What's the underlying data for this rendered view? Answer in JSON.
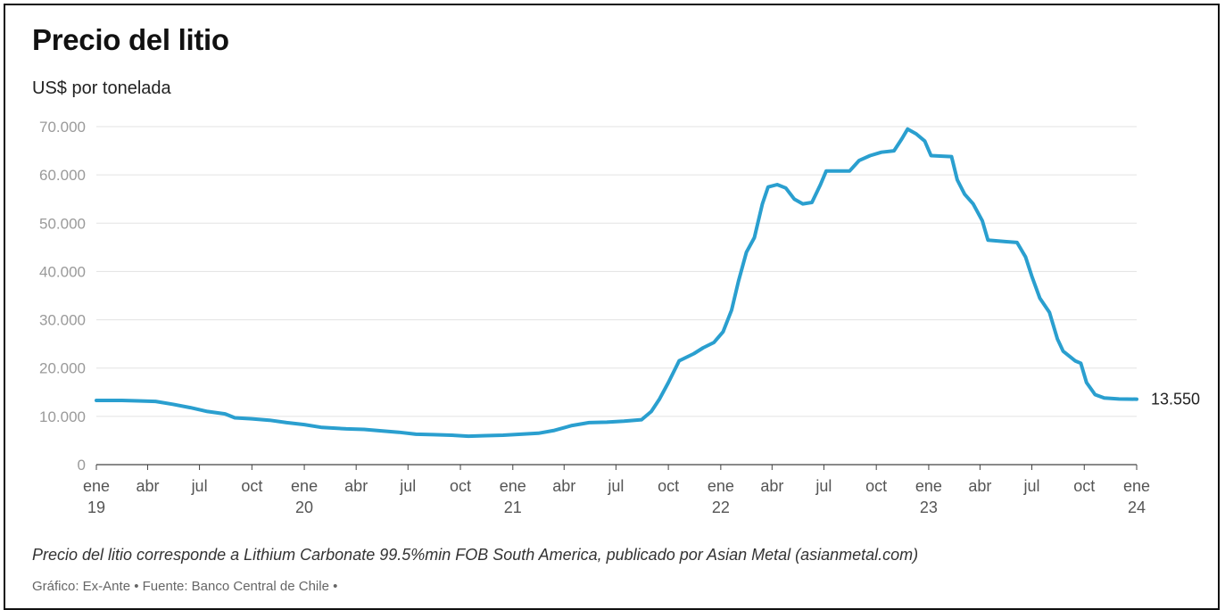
{
  "title": "Precio del litio",
  "subtitle": "US$ por tonelada",
  "note": "Precio del litio corresponde a Lithium Carbonate 99.5%min FOB South America, publicado por Asian Metal (asianmetal.com)",
  "credit": "Gráfico: Ex-Ante • Fuente: Banco Central de Chile •",
  "chart_data": {
    "type": "line",
    "title": "Precio del litio",
    "ylabel": "US$ por tonelada",
    "ylim": [
      0,
      70000
    ],
    "yticks": [
      {
        "value": 0,
        "label": "0"
      },
      {
        "value": 10000,
        "label": "10.000"
      },
      {
        "value": 20000,
        "label": "20.000"
      },
      {
        "value": 30000,
        "label": "30.000"
      },
      {
        "value": 40000,
        "label": "40.000"
      },
      {
        "value": 50000,
        "label": "50.000"
      },
      {
        "value": 60000,
        "label": "60.000"
      },
      {
        "value": 70000,
        "label": "70.000"
      }
    ],
    "xlim": [
      "2019-01-01",
      "2024-01-01"
    ],
    "xticks": [
      {
        "date": "2019-01-01",
        "label": "ene",
        "year": "19"
      },
      {
        "date": "2019-04-01",
        "label": "abr",
        "year": ""
      },
      {
        "date": "2019-07-01",
        "label": "jul",
        "year": ""
      },
      {
        "date": "2019-10-01",
        "label": "oct",
        "year": ""
      },
      {
        "date": "2020-01-01",
        "label": "ene",
        "year": "20"
      },
      {
        "date": "2020-04-01",
        "label": "abr",
        "year": ""
      },
      {
        "date": "2020-07-01",
        "label": "jul",
        "year": ""
      },
      {
        "date": "2020-10-01",
        "label": "oct",
        "year": ""
      },
      {
        "date": "2021-01-01",
        "label": "ene",
        "year": "21"
      },
      {
        "date": "2021-04-01",
        "label": "abr",
        "year": ""
      },
      {
        "date": "2021-07-01",
        "label": "jul",
        "year": ""
      },
      {
        "date": "2021-10-01",
        "label": "oct",
        "year": ""
      },
      {
        "date": "2022-01-01",
        "label": "ene",
        "year": "22"
      },
      {
        "date": "2022-04-01",
        "label": "abr",
        "year": ""
      },
      {
        "date": "2022-07-01",
        "label": "jul",
        "year": ""
      },
      {
        "date": "2022-10-01",
        "label": "oct",
        "year": ""
      },
      {
        "date": "2023-01-01",
        "label": "ene",
        "year": "23"
      },
      {
        "date": "2023-04-01",
        "label": "abr",
        "year": ""
      },
      {
        "date": "2023-07-01",
        "label": "jul",
        "year": ""
      },
      {
        "date": "2023-10-01",
        "label": "oct",
        "year": ""
      },
      {
        "date": "2024-01-01",
        "label": "ene",
        "year": "24"
      }
    ],
    "grid": true,
    "color": "#2a9fcf",
    "end_label": "13.550",
    "series": [
      {
        "points": [
          [
            "2019-01-01",
            13300
          ],
          [
            "2019-02-15",
            13300
          ],
          [
            "2019-03-15",
            13200
          ],
          [
            "2019-04-15",
            13100
          ],
          [
            "2019-05-15",
            12500
          ],
          [
            "2019-06-15",
            11800
          ],
          [
            "2019-07-15",
            11000
          ],
          [
            "2019-08-15",
            10500
          ],
          [
            "2019-09-01",
            9700
          ],
          [
            "2019-10-01",
            9500
          ],
          [
            "2019-11-01",
            9200
          ],
          [
            "2019-12-01",
            8700
          ],
          [
            "2020-01-01",
            8300
          ],
          [
            "2020-02-01",
            7700
          ],
          [
            "2020-03-15",
            7400
          ],
          [
            "2020-04-15",
            7300
          ],
          [
            "2020-05-15",
            7000
          ],
          [
            "2020-06-15",
            6700
          ],
          [
            "2020-07-15",
            6300
          ],
          [
            "2020-08-15",
            6200
          ],
          [
            "2020-09-15",
            6100
          ],
          [
            "2020-10-15",
            5900
          ],
          [
            "2020-11-15",
            6000
          ],
          [
            "2020-12-15",
            6100
          ],
          [
            "2021-01-15",
            6300
          ],
          [
            "2021-02-15",
            6500
          ],
          [
            "2021-03-15",
            7100
          ],
          [
            "2021-04-15",
            8100
          ],
          [
            "2021-05-15",
            8700
          ],
          [
            "2021-06-15",
            8800
          ],
          [
            "2021-07-15",
            9000
          ],
          [
            "2021-08-15",
            9300
          ],
          [
            "2021-09-01",
            11000
          ],
          [
            "2021-09-15",
            13500
          ],
          [
            "2021-10-01",
            17000
          ],
          [
            "2021-10-20",
            21500
          ],
          [
            "2021-11-15",
            23000
          ],
          [
            "2021-12-01",
            24200
          ],
          [
            "2021-12-20",
            25300
          ],
          [
            "2022-01-05",
            27500
          ],
          [
            "2022-01-20",
            32000
          ],
          [
            "2022-02-01",
            38000
          ],
          [
            "2022-02-15",
            44000
          ],
          [
            "2022-03-01",
            47000
          ],
          [
            "2022-03-15",
            54000
          ],
          [
            "2022-03-25",
            57500
          ],
          [
            "2022-04-10",
            58000
          ],
          [
            "2022-04-25",
            57300
          ],
          [
            "2022-05-10",
            55000
          ],
          [
            "2022-05-25",
            54000
          ],
          [
            "2022-06-10",
            54300
          ],
          [
            "2022-06-25",
            58000
          ],
          [
            "2022-07-05",
            60800
          ],
          [
            "2022-08-15",
            60800
          ],
          [
            "2022-09-01",
            63000
          ],
          [
            "2022-09-20",
            64000
          ],
          [
            "2022-10-10",
            64700
          ],
          [
            "2022-11-01",
            65000
          ],
          [
            "2022-11-15",
            67500
          ],
          [
            "2022-11-25",
            69500
          ],
          [
            "2022-12-10",
            68500
          ],
          [
            "2022-12-25",
            67000
          ],
          [
            "2023-01-05",
            64000
          ],
          [
            "2023-02-10",
            63800
          ],
          [
            "2023-02-20",
            59000
          ],
          [
            "2023-03-05",
            56000
          ],
          [
            "2023-03-20",
            54000
          ],
          [
            "2023-04-05",
            50500
          ],
          [
            "2023-04-15",
            46500
          ],
          [
            "2023-05-15",
            46200
          ],
          [
            "2023-06-05",
            46000
          ],
          [
            "2023-06-20",
            43000
          ],
          [
            "2023-07-01",
            39000
          ],
          [
            "2023-07-15",
            34500
          ],
          [
            "2023-08-01",
            31500
          ],
          [
            "2023-08-15",
            26000
          ],
          [
            "2023-08-25",
            23500
          ],
          [
            "2023-09-15",
            21500
          ],
          [
            "2023-09-25",
            21000
          ],
          [
            "2023-10-05",
            17000
          ],
          [
            "2023-10-20",
            14500
          ],
          [
            "2023-11-05",
            13800
          ],
          [
            "2023-12-01",
            13600
          ],
          [
            "2024-01-01",
            13550
          ]
        ]
      }
    ]
  }
}
